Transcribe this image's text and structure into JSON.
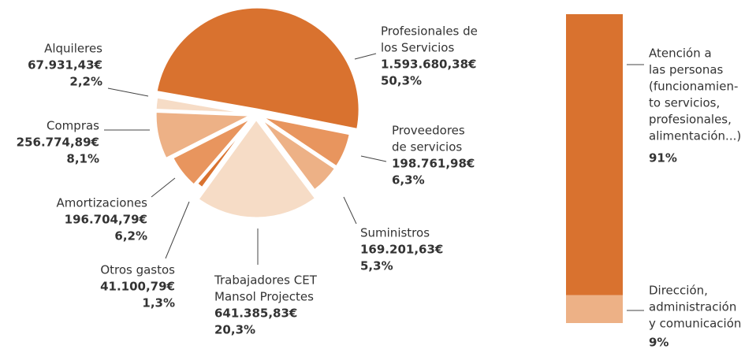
{
  "chart_data": [
    {
      "type": "pie",
      "categories": [
        [
          "Profesionales de",
          "los Servicios"
        ],
        [
          "Proveedores",
          "de servicios"
        ],
        [
          "Suministros"
        ],
        [
          "Trabajadores CET",
          "Mansol Projectes"
        ],
        [
          "Otros gastos"
        ],
        [
          "Amortizaciones"
        ],
        [
          "Compras"
        ],
        [
          "Alquileres"
        ]
      ],
      "values": [
        1593680.38,
        198761.98,
        169201.63,
        641385.83,
        41100.79,
        196704.79,
        256774.89,
        67931.43
      ],
      "value_labels": [
        "1.593.680,38€",
        "198.761,98€",
        "169.201,63€",
        "641.385,83€",
        "41.100,79€",
        "196.704,79€",
        "256.774,89€",
        "67.931,43€"
      ],
      "percent": [
        50.3,
        6.3,
        5.3,
        20.3,
        1.3,
        6.2,
        8.1,
        2.2
      ],
      "percent_labels": [
        "50,3%",
        "6,3%",
        "5,3%",
        "20,3%",
        "1,3%",
        "6,2%",
        "8,1%",
        "2,2%"
      ],
      "colors": [
        "#d9722f",
        "#e8955e",
        "#edb186",
        "#f6dcc6",
        "#d9722f",
        "#e8955e",
        "#edb186",
        "#f6dcc6"
      ]
    },
    {
      "type": "stacked_bar",
      "categories": [
        [
          "Atención a",
          "las personas",
          "(funcionamien-",
          "to servicios,",
          "profesionales,",
          "alimentación...)"
        ],
        [
          "Dirección,",
          "administración",
          "y comunicación"
        ]
      ],
      "values": [
        91,
        9
      ],
      "value_labels": [
        "91%",
        "9%"
      ],
      "colors": [
        "#d9722f",
        "#edb186"
      ],
      "ylim": [
        0,
        100
      ]
    }
  ]
}
